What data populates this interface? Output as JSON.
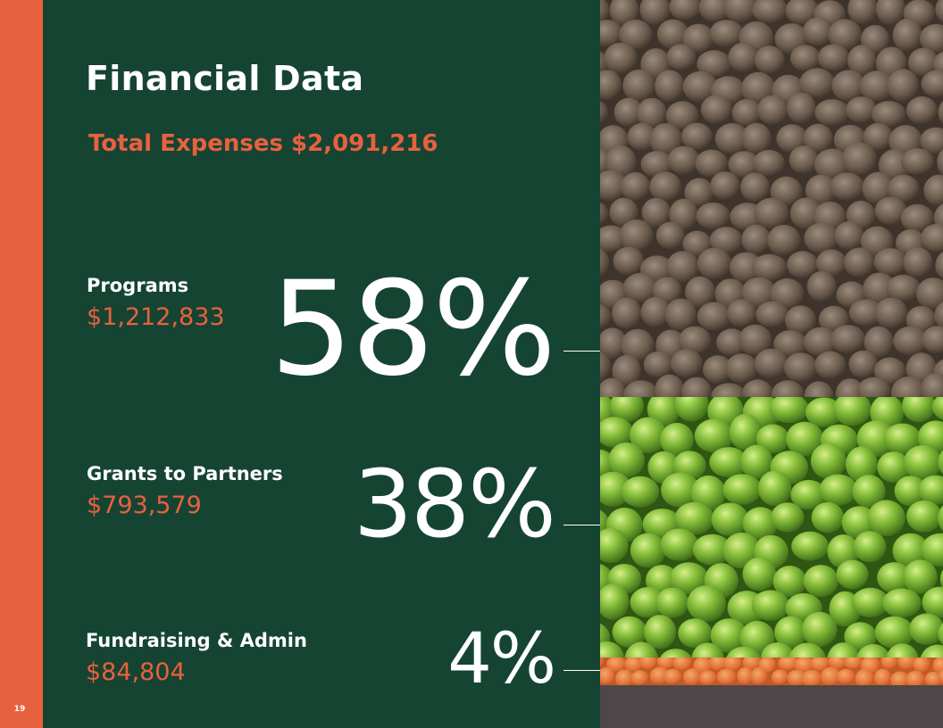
{
  "page": {
    "number": "19",
    "title": "Financial Data",
    "total_expenses": "Total Expenses $2,091,216"
  },
  "chart_data": {
    "type": "bar",
    "categories": [
      "Programs",
      "Grants to Partners",
      "Fundraising & Admin"
    ],
    "amounts": [
      "$1,212,833",
      "$793,579",
      "$84,804"
    ],
    "percent_labels": [
      "58%",
      "38%",
      "4%"
    ],
    "values": [
      58,
      38,
      4
    ],
    "title": "",
    "xlabel": "",
    "ylabel": ""
  },
  "colors": {
    "accent": "#e8613f",
    "panel": "#164432",
    "lentils": "#6a5a4c",
    "peas": "#7fb536",
    "red_lentils": "#e07a3a",
    "base_band": "#4d4749"
  },
  "images": {
    "top": "brown-lentils-photo",
    "middle": "green-peas-photo",
    "bottom": "red-lentils-photo"
  }
}
